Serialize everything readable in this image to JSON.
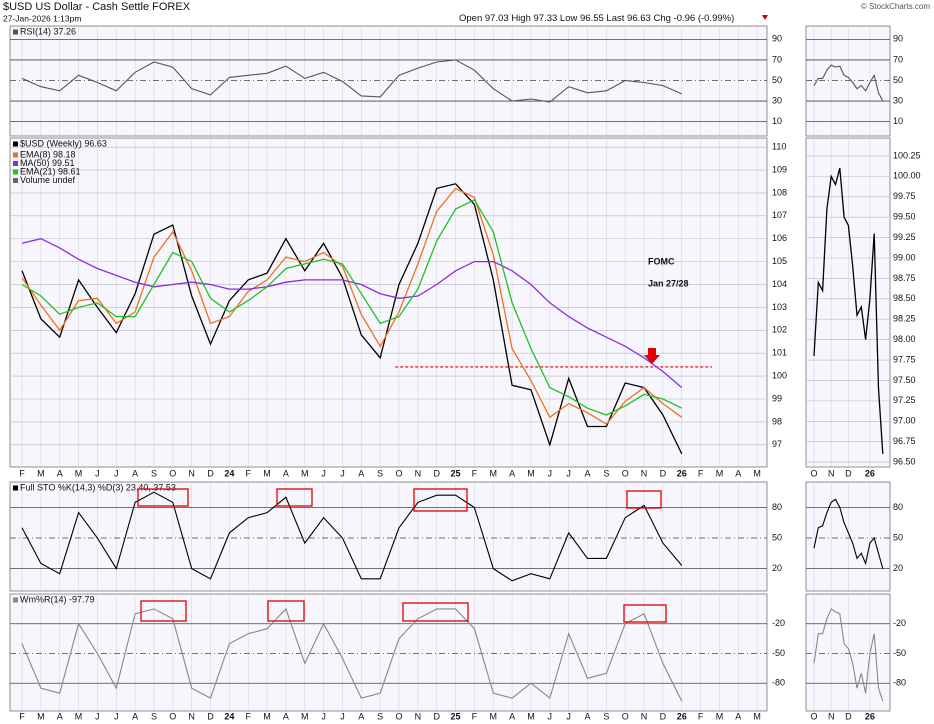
{
  "header": {
    "title": "$USD US Dollar - Cash Settle FOREX",
    "subtitle": "27-Jan-2026 1:13pm",
    "stats": [
      {
        "label": "Open",
        "value": "97.03"
      },
      {
        "label": "High",
        "value": "97.33"
      },
      {
        "label": "Low",
        "value": "96.55"
      },
      {
        "label": "Last",
        "value": "96.63"
      },
      {
        "label": "Chg",
        "value": "-0.96 (-0.99%)"
      }
    ],
    "credit": "© StockCharts.com"
  },
  "chart_data": [
    {
      "type": "line",
      "categories": [
        "F",
        "M",
        "A",
        "M",
        "J",
        "J",
        "A",
        "S",
        "O",
        "N",
        "D",
        "24",
        "F",
        "M",
        "A",
        "M",
        "J",
        "J",
        "A",
        "S",
        "O",
        "N",
        "D",
        "25",
        "F",
        "M",
        "A",
        "M",
        "J",
        "J",
        "A",
        "S",
        "O",
        "N",
        "D",
        "26",
        "F",
        "M",
        "A",
        "M"
      ],
      "annotations": [
        "FOMC",
        "Jan 27/28"
      ],
      "reference_line": {
        "value": 100.4,
        "color": "#e00000"
      },
      "panels": [
        {
          "ylim": [
            -4,
            103
          ],
          "yticks": [
            90,
            70,
            50,
            30,
            10
          ],
          "series": [
            {
              "name": "RSI(14) 37.26",
              "color": "#555555",
              "values": [
                52,
                44,
                40,
                55,
                48,
                40,
                58,
                68,
                63,
                42,
                36,
                53,
                55,
                57,
                64,
                52,
                58,
                49,
                35,
                34,
                55,
                62,
                68,
                70,
                60,
                42,
                30,
                32,
                29,
                44,
                38,
                40,
                50,
                48,
                45,
                37,
                null,
                null,
                null,
                null
              ]
            }
          ]
        },
        {
          "ylim": [
            96.03,
            110.4
          ],
          "yticks": [
            97,
            98,
            99,
            100,
            101,
            102,
            103,
            104,
            105,
            106,
            107,
            108,
            109,
            110
          ],
          "legend_extra": "Volume undef",
          "series": [
            {
              "name": "$USD (Weekly) 96.63",
              "color": "#000000",
              "values": [
                104.6,
                102.5,
                101.7,
                104.2,
                103.0,
                101.9,
                103.6,
                106.2,
                106.6,
                103.5,
                101.4,
                103.3,
                104.2,
                104.5,
                106.0,
                104.6,
                105.8,
                104.3,
                101.8,
                100.8,
                104.0,
                105.8,
                108.2,
                108.4,
                107.5,
                104.2,
                99.6,
                99.4,
                97.0,
                99.9,
                97.8,
                97.8,
                99.7,
                99.5,
                98.3,
                96.6,
                null,
                null,
                null,
                null
              ]
            },
            {
              "name": "EMA(8) 98.18",
              "color": "#f07020",
              "values": [
                104.3,
                103.1,
                102.0,
                103.3,
                103.4,
                102.3,
                102.8,
                105.2,
                106.3,
                104.6,
                102.3,
                102.6,
                103.7,
                104.2,
                105.2,
                105.0,
                105.4,
                104.8,
                102.7,
                101.3,
                102.8,
                104.9,
                107.2,
                108.2,
                107.8,
                105.3,
                101.2,
                99.8,
                98.2,
                98.8,
                98.4,
                97.9,
                98.9,
                99.5,
                98.8,
                98.2,
                null,
                null,
                null,
                null
              ]
            },
            {
              "name": "MA(50) 99.51",
              "color": "#8a2be2",
              "values": [
                105.8,
                106.0,
                105.6,
                105.1,
                104.7,
                104.4,
                104.1,
                103.9,
                104.0,
                104.1,
                104.0,
                103.8,
                103.8,
                103.9,
                104.1,
                104.2,
                104.2,
                104.2,
                104.0,
                103.6,
                103.4,
                103.5,
                104.0,
                104.6,
                105.0,
                105.0,
                104.6,
                104.0,
                103.2,
                102.6,
                102.1,
                101.7,
                101.3,
                100.8,
                100.2,
                99.5,
                null,
                null,
                null,
                null
              ]
            },
            {
              "name": "EMA(21) 98.61",
              "color": "#22c022",
              "values": [
                104.0,
                103.5,
                102.7,
                103.0,
                103.2,
                102.6,
                102.6,
                104.0,
                105.4,
                105.0,
                103.4,
                102.8,
                103.3,
                103.9,
                104.7,
                104.9,
                105.1,
                104.9,
                103.6,
                102.3,
                102.6,
                103.8,
                105.9,
                107.3,
                107.7,
                106.3,
                103.2,
                101.2,
                99.5,
                99.1,
                98.6,
                98.3,
                98.7,
                99.2,
                99.0,
                98.6,
                null,
                null,
                null,
                null
              ]
            }
          ]
        },
        {
          "ylim": [
            -2,
            105
          ],
          "yticks": [
            80,
            50,
            20
          ],
          "series": [
            {
              "name": "Full STO %K(14,3) %D(3) 23.40, 37.53",
              "color": "#000000",
              "values": [
                60,
                25,
                15,
                75,
                50,
                20,
                85,
                95,
                85,
                20,
                10,
                55,
                70,
                75,
                90,
                45,
                70,
                50,
                10,
                10,
                60,
                85,
                92,
                92,
                80,
                20,
                8,
                15,
                10,
                55,
                30,
                30,
                70,
                82,
                45,
                23,
                null,
                null,
                null,
                null
              ]
            }
          ]
        },
        {
          "ylim": [
            -108,
            10
          ],
          "yticks": [
            -20,
            -50,
            -80
          ],
          "series": [
            {
              "name": "Wm%R(14) -97.79",
              "color": "#888888",
              "values": [
                -40,
                -85,
                -90,
                -20,
                -50,
                -85,
                -10,
                -5,
                -15,
                -85,
                -95,
                -40,
                -30,
                -25,
                -5,
                -60,
                -20,
                -55,
                -95,
                -90,
                -35,
                -15,
                -5,
                -5,
                -25,
                -90,
                -95,
                -80,
                -95,
                -30,
                -75,
                -70,
                -20,
                -10,
                -60,
                -98,
                null,
                null,
                null,
                null
              ]
            }
          ]
        }
      ]
    },
    {
      "type": "line",
      "categories": [
        "O",
        null,
        null,
        null,
        "N",
        null,
        null,
        null,
        "D",
        null,
        null,
        null,
        null,
        "26",
        null,
        null,
        null
      ],
      "panels": [
        {
          "ylim": [
            -4,
            103
          ],
          "yticks": [
            90,
            70,
            50,
            30,
            10
          ],
          "series": [
            {
              "color": "#555555",
              "values": [
                45,
                52,
                52,
                60,
                65,
                63,
                64,
                55,
                53,
                48,
                42,
                45,
                40,
                48,
                55,
                38,
                30
              ]
            }
          ]
        },
        {
          "ylim": [
            96.44,
            100.47
          ],
          "yticks": [
            100.25,
            {
              "value": 100,
              "label": "100.00"
            },
            99.75,
            {
              "value": 99.5,
              "label": "99.50"
            },
            99.25,
            {
              "value": 99,
              "label": "99.00"
            },
            98.75,
            {
              "value": 98.5,
              "label": "98.50"
            },
            98.25,
            {
              "value": 98,
              "label": "98.00"
            },
            97.75,
            {
              "value": 97.5,
              "label": "97.50"
            },
            97.25,
            {
              "value": 97,
              "label": "97.00"
            },
            96.75,
            {
              "value": 96.5,
              "label": "96.50"
            }
          ],
          "series": [
            {
              "color": "#000000",
              "values": [
                97.8,
                98.7,
                98.6,
                99.6,
                100.0,
                99.9,
                100.1,
                99.5,
                99.4,
                98.9,
                98.3,
                98.4,
                98.0,
                98.5,
                99.3,
                97.4,
                96.6
              ]
            }
          ]
        },
        {
          "ylim": [
            -2,
            105
          ],
          "yticks": [
            80,
            50,
            20
          ],
          "series": [
            {
              "color": "#000000",
              "values": [
                40,
                60,
                62,
                75,
                85,
                88,
                80,
                65,
                55,
                45,
                30,
                35,
                25,
                45,
                50,
                35,
                20
              ]
            }
          ]
        },
        {
          "ylim": [
            -108,
            10
          ],
          "yticks": [
            -20,
            -50,
            -80
          ],
          "series": [
            {
              "color": "#888888",
              "values": [
                -60,
                -30,
                -30,
                -15,
                -5,
                -8,
                -10,
                -40,
                -45,
                -60,
                -85,
                -70,
                -90,
                -50,
                -30,
                -85,
                -98
              ]
            }
          ]
        }
      ]
    }
  ]
}
